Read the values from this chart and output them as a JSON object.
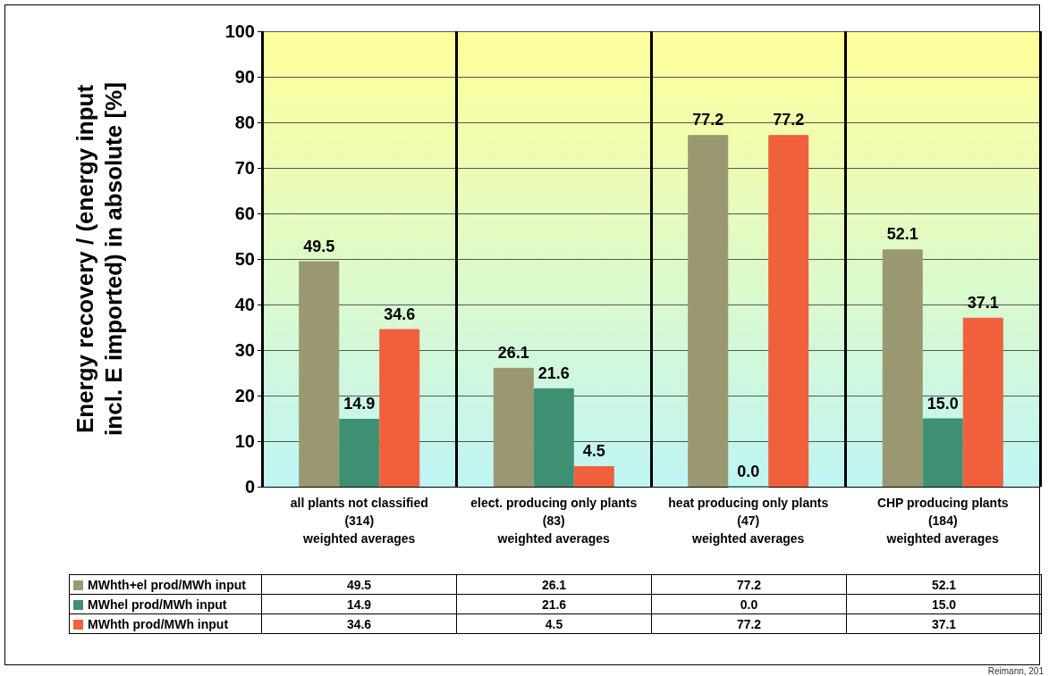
{
  "chart_data": {
    "type": "bar",
    "ylabel": "Energy recovery / (energy input incl. E imported) in absolute [%]",
    "categories": [
      "all plants not classified (314) weighted averages",
      "elect. producing only plants (83) weighted averages",
      "heat producing only plants (47) weighted averages",
      "CHP producing plants (184) weighted averages"
    ],
    "series": [
      {
        "name": "MWhth+el prod/MWh input",
        "color": "#9a9870",
        "values": [
          49.5,
          26.1,
          77.2,
          52.1
        ],
        "value_labels": [
          "49.5",
          "26.1",
          "77.2",
          "52.1"
        ]
      },
      {
        "name": "MWhel prod/MWh input",
        "color": "#3f8f72",
        "values": [
          14.9,
          21.6,
          0.0,
          15.0
        ],
        "value_labels": [
          "14.9",
          "21.6",
          "0.0",
          "15.0"
        ]
      },
      {
        "name": "MWhth prod/MWh input",
        "color": "#f0603c",
        "values": [
          34.6,
          4.5,
          77.2,
          37.1
        ],
        "value_labels": [
          "34.6",
          "4.5",
          "77.2",
          "37.1"
        ]
      }
    ],
    "ylim": [
      0,
      100
    ],
    "yticks": [
      0,
      10,
      20,
      30,
      40,
      50,
      60,
      70,
      80,
      90,
      100
    ],
    "grid": "y",
    "legend": "bottom",
    "annotations": [
      "Reimann, 201"
    ]
  }
}
